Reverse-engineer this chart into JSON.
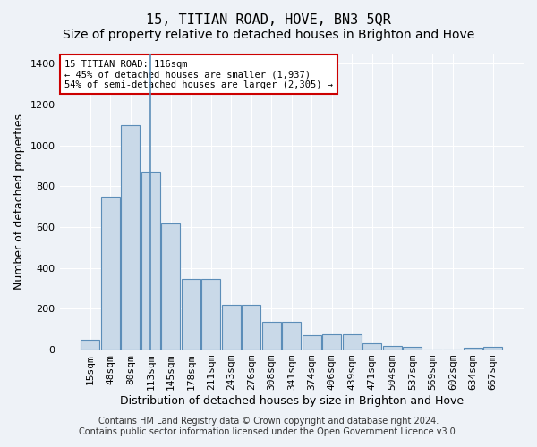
{
  "title": "15, TITIAN ROAD, HOVE, BN3 5QR",
  "subtitle": "Size of property relative to detached houses in Brighton and Hove",
  "xlabel": "Distribution of detached houses by size in Brighton and Hove",
  "ylabel": "Number of detached properties",
  "footer_line1": "Contains HM Land Registry data © Crown copyright and database right 2024.",
  "footer_line2": "Contains public sector information licensed under the Open Government Licence v3.0.",
  "annotation_title": "15 TITIAN ROAD: 116sqm",
  "annotation_line2": "← 45% of detached houses are smaller (1,937)",
  "annotation_line3": "54% of semi-detached houses are larger (2,305) →",
  "bar_labels": [
    "15sqm",
    "48sqm",
    "80sqm",
    "113sqm",
    "145sqm",
    "178sqm",
    "211sqm",
    "243sqm",
    "276sqm",
    "308sqm",
    "341sqm",
    "374sqm",
    "406sqm",
    "439sqm",
    "471sqm",
    "504sqm",
    "537sqm",
    "569sqm",
    "602sqm",
    "634sqm",
    "667sqm"
  ],
  "bar_values": [
    50,
    750,
    1100,
    870,
    620,
    345,
    345,
    220,
    220,
    135,
    135,
    70,
    75,
    75,
    30,
    20,
    15,
    0,
    0,
    10,
    15
  ],
  "bar_color": "#c9d9e8",
  "bar_edgecolor": "#5b8db8",
  "background_color": "#eef2f7",
  "plot_bg_color": "#eef2f7",
  "annotation_box_color": "#ffffff",
  "annotation_border_color": "#cc0000",
  "property_line_x": 3,
  "ylim": [
    0,
    1450
  ],
  "yticks": [
    0,
    200,
    400,
    600,
    800,
    1000,
    1200,
    1400
  ],
  "title_fontsize": 11,
  "subtitle_fontsize": 10,
  "ylabel_fontsize": 9,
  "xlabel_fontsize": 9,
  "tick_fontsize": 8,
  "footer_fontsize": 7
}
